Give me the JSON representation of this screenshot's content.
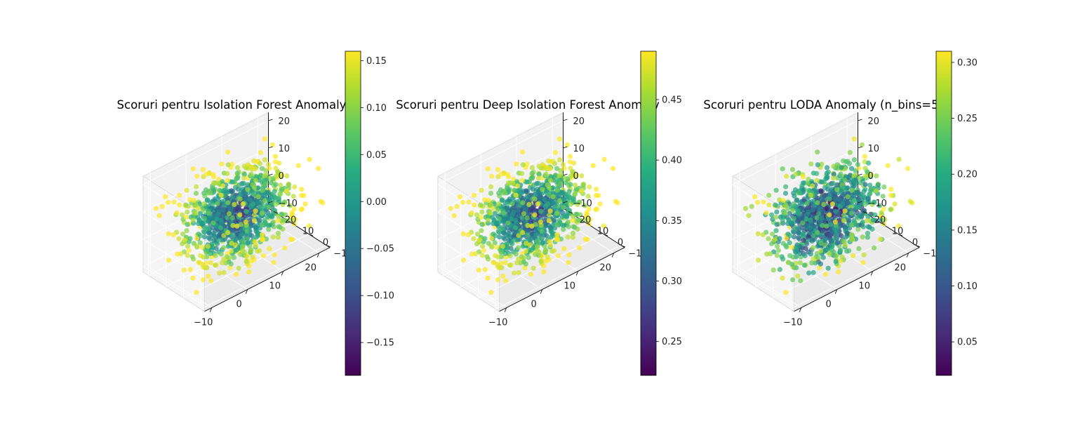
{
  "chart_data": [
    {
      "type": "scatter",
      "title": "Scoruri pentru Isolation Forest Anomaly",
      "colorscale": "viridis",
      "clim": [
        -0.185,
        0.16
      ],
      "colorbar_ticks": [
        "−0.15",
        "−0.10",
        "−0.05",
        "0.00",
        "0.05",
        "0.10",
        "0.15"
      ],
      "colorbar_tick_values": [
        -0.15,
        -0.1,
        -0.05,
        0.0,
        0.05,
        0.1,
        0.15
      ],
      "xticks": [
        "−10",
        "0",
        "10",
        "20"
      ],
      "yticks": [
        "−10",
        "0",
        "10",
        "20"
      ],
      "zticks": [
        "−10",
        "0",
        "10",
        "20"
      ],
      "xlim": [
        -12,
        23
      ],
      "ylim": [
        -12,
        23
      ],
      "zlim": [
        -12,
        23
      ],
      "n_points": 1000,
      "score_model": "distance-from-center",
      "score_center": [
        5,
        5,
        5
      ]
    },
    {
      "type": "scatter",
      "title": "Scoruri pentru Deep Isolation Forest Anomaly",
      "colorscale": "viridis",
      "clim": [
        0.222,
        0.49
      ],
      "colorbar_ticks": [
        "0.25",
        "0.30",
        "0.35",
        "0.40",
        "0.45"
      ],
      "colorbar_tick_values": [
        0.25,
        0.3,
        0.35,
        0.4,
        0.45
      ],
      "xticks": [
        "−10",
        "0",
        "10",
        "20"
      ],
      "yticks": [
        "−10",
        "0",
        "10",
        "20"
      ],
      "zticks": [
        "−10",
        "0",
        "10",
        "20"
      ],
      "xlim": [
        -12,
        23
      ],
      "ylim": [
        -12,
        23
      ],
      "zlim": [
        -12,
        23
      ],
      "n_points": 1000,
      "score_model": "distance-from-center",
      "score_center": [
        5,
        5,
        5
      ]
    },
    {
      "type": "scatter",
      "title": "Scoruri pentru LODA Anomaly (n_bins=5",
      "colorscale": "viridis",
      "clim": [
        0.02,
        0.31
      ],
      "colorbar_ticks": [
        "0.05",
        "0.10",
        "0.15",
        "0.20",
        "0.25",
        "0.30"
      ],
      "colorbar_tick_values": [
        0.05,
        0.1,
        0.15,
        0.2,
        0.25,
        0.3
      ],
      "xticks": [
        "−10",
        "0",
        "10",
        "20"
      ],
      "yticks": [
        "−10",
        "0",
        "10",
        "20"
      ],
      "zticks": [
        "−10",
        "0",
        "10",
        "20"
      ],
      "xlim": [
        -12,
        23
      ],
      "ylim": [
        -12,
        23
      ],
      "zlim": [
        -12,
        23
      ],
      "n_points": 1000,
      "score_model": "distance-plus-noise",
      "score_center": [
        5,
        5,
        5
      ]
    }
  ]
}
